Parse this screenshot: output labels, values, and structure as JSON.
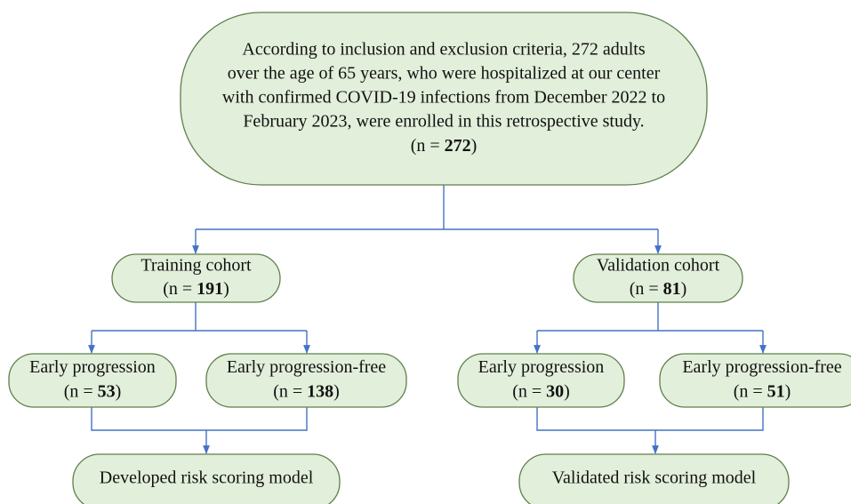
{
  "nodes": [
    {
      "lines": [
        "According to inclusion and exclusion criteria, 272 adults",
        "over the age of 65 years, who were hospitalized at our center",
        "with confirmed COVID-19 infections from December 2022 to",
        "February 2023, were enrolled in this retrospective study."
      ],
      "count": {
        "prefix": "(n = ",
        "value": 272,
        "suffix": ")"
      }
    },
    {
      "lines": [
        "Training cohort"
      ],
      "count": {
        "prefix": "(n = ",
        "value": 191,
        "suffix": ")"
      }
    },
    {
      "lines": [
        "Validation cohort"
      ],
      "count": {
        "prefix": "(n = ",
        "value": 81,
        "suffix": ")"
      }
    },
    {
      "lines": [
        "Early progression"
      ],
      "count": {
        "prefix": "(n = ",
        "value": 53,
        "suffix": ")"
      }
    },
    {
      "lines": [
        "Early progression-free"
      ],
      "count": {
        "prefix": "(n = ",
        "value": 138,
        "suffix": ")"
      }
    },
    {
      "lines": [
        "Early progression"
      ],
      "count": {
        "prefix": "(n = ",
        "value": 30,
        "suffix": ")"
      }
    },
    {
      "lines": [
        "Early progression-free"
      ],
      "count": {
        "prefix": "(n = ",
        "value": 51,
        "suffix": ")"
      }
    },
    {
      "lines": [
        "Developed risk scoring model"
      ]
    },
    {
      "lines": [
        "Validated risk scoring model"
      ]
    }
  ]
}
